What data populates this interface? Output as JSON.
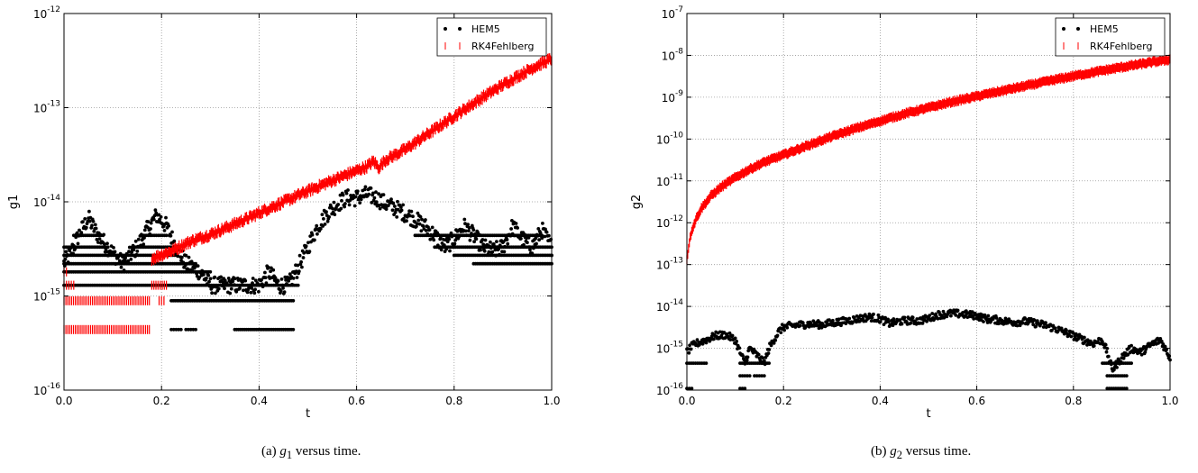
{
  "captions": [
    {
      "prefix": "(a) ",
      "var": "g",
      "sub": "1",
      "suffix": " versus time."
    },
    {
      "prefix": "(b) ",
      "var": "g",
      "sub": "2",
      "suffix": " versus time."
    }
  ],
  "chart_data": [
    {
      "type": "scatter",
      "xlabel": "t",
      "ylabel": "g1",
      "yscale": "log",
      "xlim": [
        0.0,
        1.0
      ],
      "ylim": [
        1e-16,
        1e-12
      ],
      "xticks": [
        "0.0",
        "0.2",
        "0.4",
        "0.6",
        "0.8",
        "1.0"
      ],
      "yticks": [
        {
          "base": "10",
          "exp": "-16"
        },
        {
          "base": "10",
          "exp": "-15"
        },
        {
          "base": "10",
          "exp": "-14"
        },
        {
          "base": "10",
          "exp": "-13"
        },
        {
          "base": "10",
          "exp": "-12"
        }
      ],
      "grid": true,
      "legend_position": "top-right",
      "series": [
        {
          "name": "HEM5",
          "color": "#000000",
          "marker": "dot",
          "points": [
            [
              0.0,
              2.2e-15
            ],
            [
              0.02,
              3.3e-15
            ],
            [
              0.03,
              4.4e-15
            ],
            [
              0.05,
              6.7e-15
            ],
            [
              0.07,
              4.4e-15
            ],
            [
              0.09,
              3.3e-15
            ],
            [
              0.12,
              2.2e-15
            ],
            [
              0.15,
              3.3e-15
            ],
            [
              0.17,
              5e-15
            ],
            [
              0.19,
              7.2e-15
            ],
            [
              0.21,
              5.5e-15
            ],
            [
              0.23,
              3.3e-15
            ],
            [
              0.25,
              2.2e-15
            ],
            [
              0.28,
              1.8e-15
            ],
            [
              0.3,
              1.3e-15
            ],
            [
              0.33,
              1.3e-15
            ],
            [
              0.35,
              1.3e-15
            ],
            [
              0.37,
              1.3e-15
            ],
            [
              0.4,
              1.3e-15
            ],
            [
              0.42,
              1.8e-15
            ],
            [
              0.44,
              1.3e-15
            ],
            [
              0.46,
              1.3e-15
            ],
            [
              0.48,
              2e-15
            ],
            [
              0.5,
              3.3e-15
            ],
            [
              0.52,
              5.5e-15
            ],
            [
              0.54,
              7.5e-15
            ],
            [
              0.56,
              9.5e-15
            ],
            [
              0.58,
              1.1e-14
            ],
            [
              0.6,
              1.1e-14
            ],
            [
              0.62,
              1.2e-14
            ],
            [
              0.64,
              1.1e-14
            ],
            [
              0.66,
              9.5e-15
            ],
            [
              0.68,
              8.5e-15
            ],
            [
              0.7,
              7.5e-15
            ],
            [
              0.72,
              6.5e-15
            ],
            [
              0.74,
              5.5e-15
            ],
            [
              0.76,
              4.4e-15
            ],
            [
              0.78,
              3.3e-15
            ],
            [
              0.8,
              4e-15
            ],
            [
              0.82,
              5.5e-15
            ],
            [
              0.84,
              4.4e-15
            ],
            [
              0.86,
              3.3e-15
            ],
            [
              0.88,
              3e-15
            ],
            [
              0.9,
              3.3e-15
            ],
            [
              0.92,
              5.5e-15
            ],
            [
              0.94,
              4e-15
            ],
            [
              0.96,
              3.3e-15
            ],
            [
              0.98,
              5e-15
            ],
            [
              1.0,
              3.3e-15
            ]
          ],
          "levels": [
            {
              "value": 4.4e-16,
              "x": [
                [
                  0.22,
                  0.24
                ],
                [
                  0.25,
                  0.27
                ],
                [
                  0.35,
                  0.47
                ]
              ]
            },
            {
              "value": 8.9e-16,
              "x": [
                [
                  0.22,
                  0.47
                ]
              ]
            },
            {
              "value": 1.3e-15,
              "x": [
                [
                  0.0,
                  0.48
                ]
              ]
            },
            {
              "value": 1.8e-15,
              "x": [
                [
                  0.0,
                  0.3
                ]
              ]
            },
            {
              "value": 2.2e-15,
              "x": [
                [
                  0.0,
                  0.27
                ],
                [
                  0.84,
                  1.0
                ]
              ]
            },
            {
              "value": 2.7e-15,
              "x": [
                [
                  0.0,
                  0.23
                ],
                [
                  0.8,
                  1.0
                ]
              ]
            },
            {
              "value": 3.3e-15,
              "x": [
                [
                  0.0,
                  0.09
                ],
                [
                  0.14,
                  0.22
                ],
                [
                  0.76,
                  1.0
                ]
              ]
            },
            {
              "value": 4.4e-15,
              "x": [
                [
                  0.02,
                  0.08
                ],
                [
                  0.16,
                  0.21
                ],
                [
                  0.72,
                  0.98
                ]
              ]
            }
          ]
        },
        {
          "name": "RK4Fehlberg",
          "color": "#ff0000",
          "marker": "vline",
          "points": [
            [
              0.18,
              2.5e-15
            ],
            [
              0.22,
              3e-15
            ],
            [
              0.26,
              3.8e-15
            ],
            [
              0.3,
              4.5e-15
            ],
            [
              0.34,
              5.5e-15
            ],
            [
              0.38,
              6.8e-15
            ],
            [
              0.42,
              8.5e-15
            ],
            [
              0.46,
              1.05e-14
            ],
            [
              0.5,
              1.3e-14
            ],
            [
              0.54,
              1.6e-14
            ],
            [
              0.58,
              1.95e-14
            ],
            [
              0.62,
              2.35e-14
            ],
            [
              0.635,
              2.7e-14
            ],
            [
              0.645,
              2.3e-14
            ],
            [
              0.66,
              2.8e-14
            ],
            [
              0.7,
              3.6e-14
            ],
            [
              0.74,
              5e-14
            ],
            [
              0.78,
              6.9e-14
            ],
            [
              0.82,
              9.5e-14
            ],
            [
              0.86,
              1.3e-13
            ],
            [
              0.9,
              1.75e-13
            ],
            [
              0.94,
              2.3e-13
            ],
            [
              0.97,
              2.8e-13
            ],
            [
              1.0,
              3.3e-13
            ]
          ],
          "levels": [
            {
              "value": 4.4e-16,
              "x": [
                [
                  0.0,
                  0.175
                ]
              ]
            },
            {
              "value": 8.9e-16,
              "x": [
                [
                  0.0,
                  0.175
                ],
                [
                  0.195,
                  0.205
                ]
              ]
            },
            {
              "value": 1.3e-15,
              "x": [
                [
                  0.0,
                  0.02
                ],
                [
                  0.18,
                  0.21
                ]
              ]
            },
            {
              "value": 1.8e-15,
              "x": [
                [
                  0.0,
                  0.005
                ]
              ]
            }
          ]
        }
      ]
    },
    {
      "type": "scatter",
      "xlabel": "t",
      "ylabel": "g2",
      "yscale": "log",
      "xlim": [
        0.0,
        1.0
      ],
      "ylim": [
        1e-16,
        1e-07
      ],
      "xticks": [
        "0.0",
        "0.2",
        "0.4",
        "0.6",
        "0.8",
        "1.0"
      ],
      "yticks": [
        {
          "base": "10",
          "exp": "-16"
        },
        {
          "base": "10",
          "exp": "-15"
        },
        {
          "base": "10",
          "exp": "-14"
        },
        {
          "base": "10",
          "exp": "-13"
        },
        {
          "base": "10",
          "exp": "-12"
        },
        {
          "base": "10",
          "exp": "-11"
        },
        {
          "base": "10",
          "exp": "-10"
        },
        {
          "base": "10",
          "exp": "-9"
        },
        {
          "base": "10",
          "exp": "-8"
        },
        {
          "base": "10",
          "exp": "-7"
        }
      ],
      "grid": true,
      "legend_position": "top-right",
      "series": [
        {
          "name": "HEM5",
          "color": "#000000",
          "marker": "dot",
          "points": [
            [
              0.0,
              8e-16
            ],
            [
              0.01,
              1.1e-15
            ],
            [
              0.02,
              1.3e-15
            ],
            [
              0.04,
              1.6e-15
            ],
            [
              0.06,
              2e-15
            ],
            [
              0.08,
              2.1e-15
            ],
            [
              0.1,
              1.6e-15
            ],
            [
              0.11,
              8e-16
            ],
            [
              0.12,
              4.4e-16
            ],
            [
              0.13,
              1e-15
            ],
            [
              0.15,
              6e-16
            ],
            [
              0.16,
              4.4e-16
            ],
            [
              0.17,
              1e-15
            ],
            [
              0.18,
              1.6e-15
            ],
            [
              0.19,
              2.5e-15
            ],
            [
              0.2,
              3.2e-15
            ],
            [
              0.22,
              3.5e-15
            ],
            [
              0.25,
              3.8e-15
            ],
            [
              0.28,
              3.7e-15
            ],
            [
              0.3,
              4e-15
            ],
            [
              0.33,
              4.5e-15
            ],
            [
              0.36,
              5.2e-15
            ],
            [
              0.38,
              5.6e-15
            ],
            [
              0.4,
              5e-15
            ],
            [
              0.42,
              3.9e-15
            ],
            [
              0.44,
              4.4e-15
            ],
            [
              0.46,
              4.6e-15
            ],
            [
              0.48,
              4.5e-15
            ],
            [
              0.5,
              5.2e-15
            ],
            [
              0.52,
              6.3e-15
            ],
            [
              0.55,
              6.8e-15
            ],
            [
              0.58,
              6.4e-15
            ],
            [
              0.6,
              6e-15
            ],
            [
              0.62,
              5e-15
            ],
            [
              0.64,
              4.8e-15
            ],
            [
              0.66,
              4.4e-15
            ],
            [
              0.68,
              4.2e-15
            ],
            [
              0.7,
              4.4e-15
            ],
            [
              0.72,
              4e-15
            ],
            [
              0.74,
              3.6e-15
            ],
            [
              0.76,
              3e-15
            ],
            [
              0.78,
              2.5e-15
            ],
            [
              0.8,
              2e-15
            ],
            [
              0.82,
              1.6e-15
            ],
            [
              0.84,
              1.3e-15
            ],
            [
              0.86,
              1.6e-15
            ],
            [
              0.87,
              8e-16
            ],
            [
              0.88,
              3e-16
            ],
            [
              0.9,
              6e-16
            ],
            [
              0.92,
              1e-15
            ],
            [
              0.94,
              8e-16
            ],
            [
              0.96,
              1.2e-15
            ],
            [
              0.98,
              1.6e-15
            ],
            [
              1.0,
              6e-16
            ]
          ],
          "levels": [
            {
              "value": 1.1e-16,
              "x": [
                [
                  0.0,
                  0.01
                ],
                [
                  0.11,
                  0.12
                ],
                [
                  0.87,
                  0.91
                ]
              ]
            },
            {
              "value": 2.2e-16,
              "x": [
                [
                  0.11,
                  0.13
                ],
                [
                  0.14,
                  0.16
                ],
                [
                  0.87,
                  0.91
                ]
              ]
            },
            {
              "value": 4.4e-16,
              "x": [
                [
                  0.0,
                  0.04
                ],
                [
                  0.11,
                  0.17
                ],
                [
                  0.86,
                  0.92
                ]
              ]
            }
          ]
        },
        {
          "name": "RK4Fehlberg",
          "color": "#ff0000",
          "marker": "vline",
          "points": [
            [
              0.0,
              1.3e-13
            ],
            [
              0.005,
              3.5e-13
            ],
            [
              0.01,
              6.5e-13
            ],
            [
              0.02,
              1.3e-12
            ],
            [
              0.03,
              2.2e-12
            ],
            [
              0.05,
              4.4e-12
            ],
            [
              0.07,
              7e-12
            ],
            [
              0.1,
              1.2e-11
            ],
            [
              0.13,
              1.9e-11
            ],
            [
              0.16,
              2.8e-11
            ],
            [
              0.2,
              4.2e-11
            ],
            [
              0.25,
              7e-11
            ],
            [
              0.3,
              1.15e-10
            ],
            [
              0.35,
              1.8e-10
            ],
            [
              0.4,
              2.7e-10
            ],
            [
              0.45,
              4e-10
            ],
            [
              0.5,
              5.6e-10
            ],
            [
              0.55,
              7.8e-10
            ],
            [
              0.6,
              1.05e-09
            ],
            [
              0.65,
              1.4e-09
            ],
            [
              0.7,
              1.85e-09
            ],
            [
              0.75,
              2.45e-09
            ],
            [
              0.8,
              3.2e-09
            ],
            [
              0.85,
              4.1e-09
            ],
            [
              0.9,
              5.2e-09
            ],
            [
              0.95,
              6.5e-09
            ],
            [
              1.0,
              8e-09
            ]
          ],
          "levels": []
        }
      ]
    }
  ]
}
